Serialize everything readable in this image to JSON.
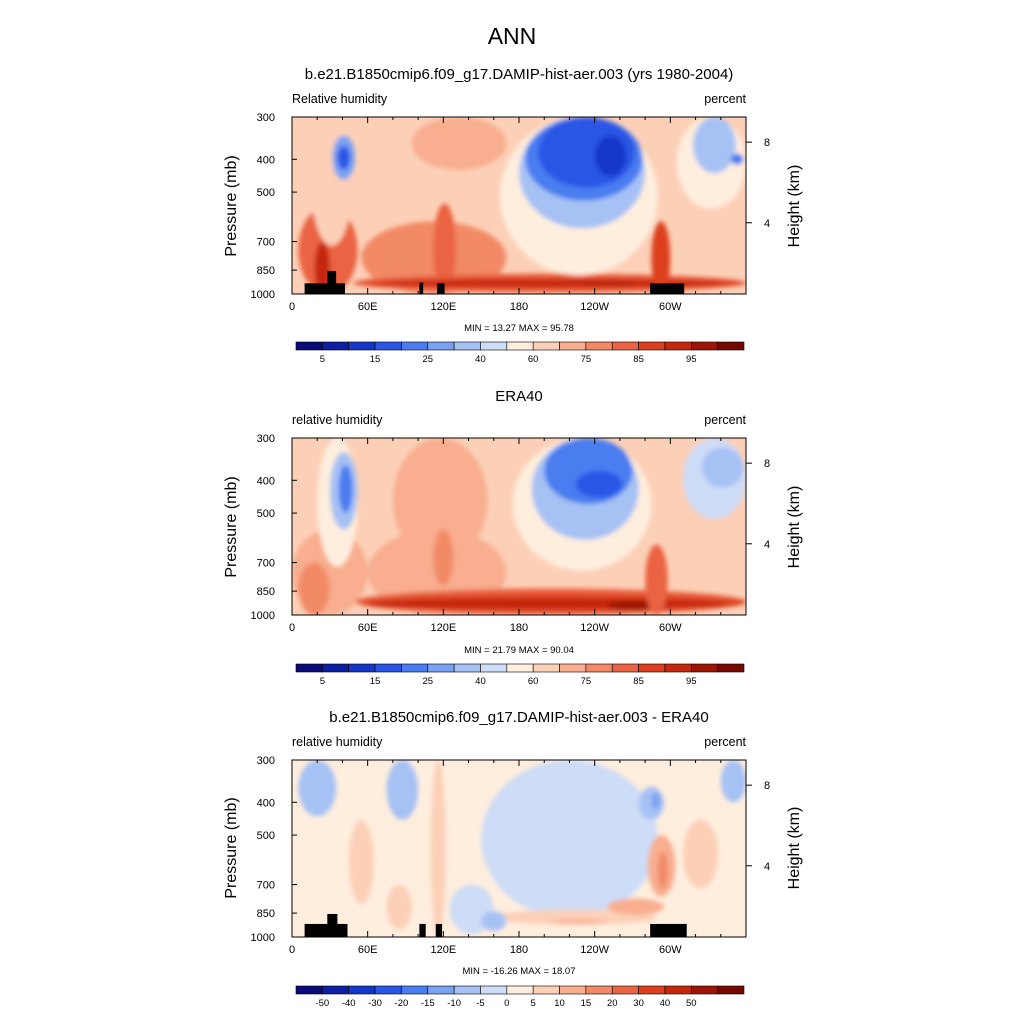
{
  "title": "ANN",
  "chart_data": [
    {
      "type": "heatmap",
      "title": "b.e21.B1850cmip6.f09_g17.DAMIP-hist-aer.003 (yrs 1980-2004)",
      "left_label": "Relative humidity",
      "right_label": "percent",
      "xlabel": "",
      "ylabel": "Pressure (mb)",
      "ylabel_right": "Height (km)",
      "x_ticks": [
        "0",
        "60E",
        "120E",
        "180",
        "120W",
        "60W"
      ],
      "x_tick_lon": [
        0,
        60,
        120,
        180,
        240,
        300
      ],
      "xlim": [
        0,
        360
      ],
      "y_ticks": [
        300,
        400,
        500,
        700,
        850,
        1000
      ],
      "ylim": [
        1000,
        300
      ],
      "y_scale": "log",
      "y_right_ticks": [
        "8",
        "4"
      ],
      "y_right_tick_pressure": [
        356,
        616
      ],
      "stats": "MIN =  13.27  MAX =  95.78",
      "min": 13.27,
      "max": 95.78,
      "colorbar_labels": [
        "5",
        "15",
        "25",
        "40",
        "60",
        "75",
        "85",
        "95"
      ],
      "colorbar_colors": [
        "#0a0a78",
        "#0c1fa4",
        "#1537c9",
        "#2a56e6",
        "#4a7df0",
        "#7aa1f2",
        "#a6c1f4",
        "#cddcf7",
        "#ffeede",
        "#fcd0b7",
        "#f8ae8f",
        "#f28a66",
        "#ea6443",
        "#dd3f1e",
        "#c5280d",
        "#9e1406",
        "#760a02"
      ],
      "zones": [
        {
          "lon": [
            5,
            52
          ],
          "p": [
            1000,
            550
          ],
          "level": 12
        },
        {
          "lon": [
            18,
            30
          ],
          "p": [
            1000,
            700
          ],
          "level": 14
        },
        {
          "lon": [
            15,
            48
          ],
          "p": [
            720,
            260
          ],
          "level": 9
        },
        {
          "lon": [
            32,
            50
          ],
          "p": [
            460,
            340
          ],
          "level": 5
        },
        {
          "lon": [
            36,
            46
          ],
          "p": [
            430,
            365
          ],
          "level": 3
        },
        {
          "lon": [
            55,
            170
          ],
          "p": [
            1000,
            610
          ],
          "level": 11
        },
        {
          "lon": [
            95,
            170
          ],
          "p": [
            430,
            260
          ],
          "level": 10
        },
        {
          "lon": [
            112,
            130
          ],
          "p": [
            1000,
            540
          ],
          "level": 12
        },
        {
          "lon": [
            48,
            360
          ],
          "p": [
            990,
            870
          ],
          "level": 12
        },
        {
          "lon": [
            55,
            360
          ],
          "p": [
            965,
            895
          ],
          "level": 13
        },
        {
          "lon": [
            70,
            345
          ],
          "p": [
            950,
            910
          ],
          "level": 14
        },
        {
          "lon": [
            230,
            272
          ],
          "p": [
            936,
            922
          ],
          "level": 15
        },
        {
          "lon": [
            165,
            290
          ],
          "p": [
            880,
            260
          ],
          "level": 8
        },
        {
          "lon": [
            180,
            280
          ],
          "p": [
            640,
            260
          ],
          "level": 6
        },
        {
          "lon": [
            185,
            278
          ],
          "p": [
            530,
            260
          ],
          "level": 4
        },
        {
          "lon": [
            195,
            272
          ],
          "p": [
            485,
            290
          ],
          "level": 3
        },
        {
          "lon": [
            240,
            265
          ],
          "p": [
            450,
            340
          ],
          "level": 2
        },
        {
          "lon": [
            285,
            300
          ],
          "p": [
            1000,
            610
          ],
          "level": 13
        },
        {
          "lon": [
            305,
            360
          ],
          "p": [
            560,
            260
          ],
          "level": 8
        },
        {
          "lon": [
            318,
            352
          ],
          "p": [
            440,
            300
          ],
          "level": 6
        },
        {
          "lon": [
            348,
            358
          ],
          "p": [
            415,
            385
          ],
          "level": 4
        }
      ],
      "topo": [
        {
          "lon": [
            10,
            42
          ],
          "p": 930
        },
        {
          "lon": [
            28,
            35
          ],
          "p": 855
        },
        {
          "lon": [
            101,
            104
          ],
          "p": 925
        },
        {
          "lon": [
            115,
            121
          ],
          "p": 930
        },
        {
          "lon": [
            284,
            311
          ],
          "p": 930
        }
      ]
    },
    {
      "type": "heatmap",
      "title": "ERA40",
      "left_label": "relative humidity",
      "right_label": "percent",
      "xlabel": "",
      "ylabel": "Pressure (mb)",
      "ylabel_right": "Height (km)",
      "x_ticks": [
        "0",
        "60E",
        "120E",
        "180",
        "120W",
        "60W"
      ],
      "x_tick_lon": [
        0,
        60,
        120,
        180,
        240,
        300
      ],
      "xlim": [
        0,
        360
      ],
      "y_ticks": [
        300,
        400,
        500,
        700,
        850,
        1000
      ],
      "ylim": [
        1000,
        300
      ],
      "y_scale": "log",
      "y_right_ticks": [
        "8",
        "4"
      ],
      "y_right_tick_pressure": [
        356,
        616
      ],
      "stats": "MIN =  21.79  MAX =  90.04",
      "min": 21.79,
      "max": 90.04,
      "colorbar_labels": [
        "5",
        "15",
        "25",
        "40",
        "60",
        "75",
        "85",
        "95"
      ],
      "colorbar_colors": [
        "#0a0a78",
        "#0c1fa4",
        "#1537c9",
        "#2a56e6",
        "#4a7df0",
        "#7aa1f2",
        "#a6c1f4",
        "#cddcf7",
        "#ffeede",
        "#fcd0b7",
        "#f8ae8f",
        "#f28a66",
        "#ea6443",
        "#dd3f1e",
        "#c5280d",
        "#9e1406",
        "#760a02"
      ],
      "zones": [
        {
          "lon": [
            0,
            60
          ],
          "p": [
            1000,
            560
          ],
          "level": 10
        },
        {
          "lon": [
            5,
            30
          ],
          "p": [
            1000,
            700
          ],
          "level": 11
        },
        {
          "lon": [
            60,
            170
          ],
          "p": [
            1000,
            560
          ],
          "level": 10
        },
        {
          "lon": [
            80,
            155
          ],
          "p": [
            700,
            290
          ],
          "level": 10
        },
        {
          "lon": [
            112,
            128
          ],
          "p": [
            820,
            560
          ],
          "level": 11
        },
        {
          "lon": [
            20,
            52
          ],
          "p": [
            720,
            260
          ],
          "level": 8
        },
        {
          "lon": [
            30,
            52
          ],
          "p": [
            560,
            330
          ],
          "level": 6
        },
        {
          "lon": [
            37,
            48
          ],
          "p": [
            500,
            360
          ],
          "level": 4
        },
        {
          "lon": [
            50,
            360
          ],
          "p": [
            1000,
            835
          ],
          "level": 12
        },
        {
          "lon": [
            55,
            360
          ],
          "p": [
            975,
            870
          ],
          "level": 13
        },
        {
          "lon": [
            60,
            345
          ],
          "p": [
            960,
            895
          ],
          "level": 14
        },
        {
          "lon": [
            250,
            290
          ],
          "p": [
            970,
            905
          ],
          "level": 15
        },
        {
          "lon": [
            175,
            285
          ],
          "p": [
            740,
            260
          ],
          "level": 8
        },
        {
          "lon": [
            190,
            275
          ],
          "p": [
            600,
            260
          ],
          "level": 6
        },
        {
          "lon": [
            200,
            270
          ],
          "p": [
            470,
            300
          ],
          "level": 4
        },
        {
          "lon": [
            225,
            262
          ],
          "p": [
            450,
            375
          ],
          "level": 3
        },
        {
          "lon": [
            280,
            298
          ],
          "p": [
            1000,
            620
          ],
          "level": 12
        },
        {
          "lon": [
            310,
            360
          ],
          "p": [
            520,
            260
          ],
          "level": 7
        },
        {
          "lon": [
            325,
            358
          ],
          "p": [
            420,
            320
          ],
          "level": 6
        }
      ],
      "topo": []
    },
    {
      "type": "heatmap",
      "title": "b.e21.B1850cmip6.f09_g17.DAMIP-hist-aer.003 - ERA40",
      "left_label": "relative humidity",
      "right_label": "percent",
      "xlabel": "",
      "ylabel": "Pressure (mb)",
      "ylabel_right": "Height (km)",
      "x_ticks": [
        "0",
        "60E",
        "120E",
        "180",
        "120W",
        "60W"
      ],
      "x_tick_lon": [
        0,
        60,
        120,
        180,
        240,
        300
      ],
      "xlim": [
        0,
        360
      ],
      "y_ticks": [
        300,
        400,
        500,
        700,
        850,
        1000
      ],
      "ylim": [
        1000,
        300
      ],
      "y_scale": "log",
      "y_right_ticks": [
        "8",
        "4"
      ],
      "y_right_tick_pressure": [
        356,
        616
      ],
      "stats": "MIN = -16.26  MAX =  18.07",
      "min": -16.26,
      "max": 18.07,
      "colorbar_labels": [
        "-50",
        "-40",
        "-30",
        "-20",
        "-15",
        "-10",
        "-5",
        "0",
        "5",
        "10",
        "15",
        "20",
        "30",
        "40",
        "50"
      ],
      "colorbar_colors": [
        "#0a0a78",
        "#0c1fa4",
        "#1537c9",
        "#2a56e6",
        "#4a7df0",
        "#7aa1f2",
        "#a6c1f4",
        "#cddcf7",
        "#ffeede",
        "#fcd0b7",
        "#f8ae8f",
        "#f28a66",
        "#ea6443",
        "#dd3f1e",
        "#c5280d",
        "#9e1406",
        "#760a02"
      ],
      "zones": [
        {
          "lon": [
            5,
            35
          ],
          "p": [
            440,
            280
          ],
          "level": 6
        },
        {
          "lon": [
            75,
            100
          ],
          "p": [
            450,
            280
          ],
          "level": 6
        },
        {
          "lon": [
            45,
            65
          ],
          "p": [
            800,
            450
          ],
          "level": 9
        },
        {
          "lon": [
            75,
            95
          ],
          "p": [
            950,
            700
          ],
          "level": 9
        },
        {
          "lon": [
            110,
            122
          ],
          "p": [
            1000,
            300
          ],
          "level": 9
        },
        {
          "lon": [
            150,
            290
          ],
          "p": [
            880,
            270
          ],
          "level": 7
        },
        {
          "lon": [
            125,
            160
          ],
          "p": [
            980,
            700
          ],
          "level": 7
        },
        {
          "lon": [
            160,
            290
          ],
          "p": [
            920,
            830
          ],
          "level": 9
        },
        {
          "lon": [
            205,
            250
          ],
          "p": [
            915,
            890
          ],
          "level": 10
        },
        {
          "lon": [
            250,
            295
          ],
          "p": [
            860,
            770
          ],
          "level": 10
        },
        {
          "lon": [
            282,
            304
          ],
          "p": [
            760,
            500
          ],
          "level": 10
        },
        {
          "lon": [
            290,
            298
          ],
          "p": [
            720,
            560
          ],
          "level": 11
        },
        {
          "lon": [
            310,
            338
          ],
          "p": [
            720,
            450
          ],
          "level": 9
        },
        {
          "lon": [
            275,
            295
          ],
          "p": [
            450,
            360
          ],
          "level": 6
        },
        {
          "lon": [
            285,
            292
          ],
          "p": [
            420,
            375
          ],
          "level": 5
        },
        {
          "lon": [
            340,
            360
          ],
          "p": [
            400,
            280
          ],
          "level": 6
        },
        {
          "lon": [
            150,
            170
          ],
          "p": [
            960,
            840
          ],
          "level": 6
        }
      ],
      "topo": [
        {
          "lon": [
            10,
            44
          ],
          "p": 915
        },
        {
          "lon": [
            28,
            36
          ],
          "p": 855
        },
        {
          "lon": [
            101,
            106
          ],
          "p": 915
        },
        {
          "lon": [
            114,
            119
          ],
          "p": 915
        },
        {
          "lon": [
            284,
            313
          ],
          "p": 915
        }
      ]
    }
  ]
}
